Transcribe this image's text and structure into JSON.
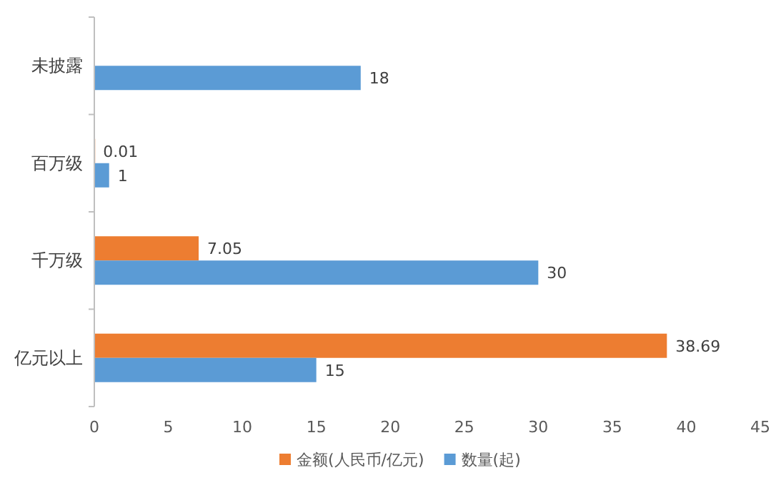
{
  "chart_data": {
    "type": "bar",
    "orientation": "horizontal",
    "categories": [
      "未披露",
      "百万级",
      "千万级",
      "亿元以上"
    ],
    "series": [
      {
        "name": "金额(人民币/亿元)",
        "color": "#ed7d31",
        "values": [
          null,
          0.01,
          7.05,
          38.69
        ]
      },
      {
        "name": "数量(起)",
        "color": "#5b9bd5",
        "values": [
          18,
          1,
          30,
          15
        ]
      }
    ],
    "xlim": [
      0,
      45
    ],
    "xticks": [
      0,
      5,
      10,
      15,
      20,
      25,
      30,
      35,
      40,
      45
    ],
    "data_labels": true,
    "legend": "bottom"
  }
}
